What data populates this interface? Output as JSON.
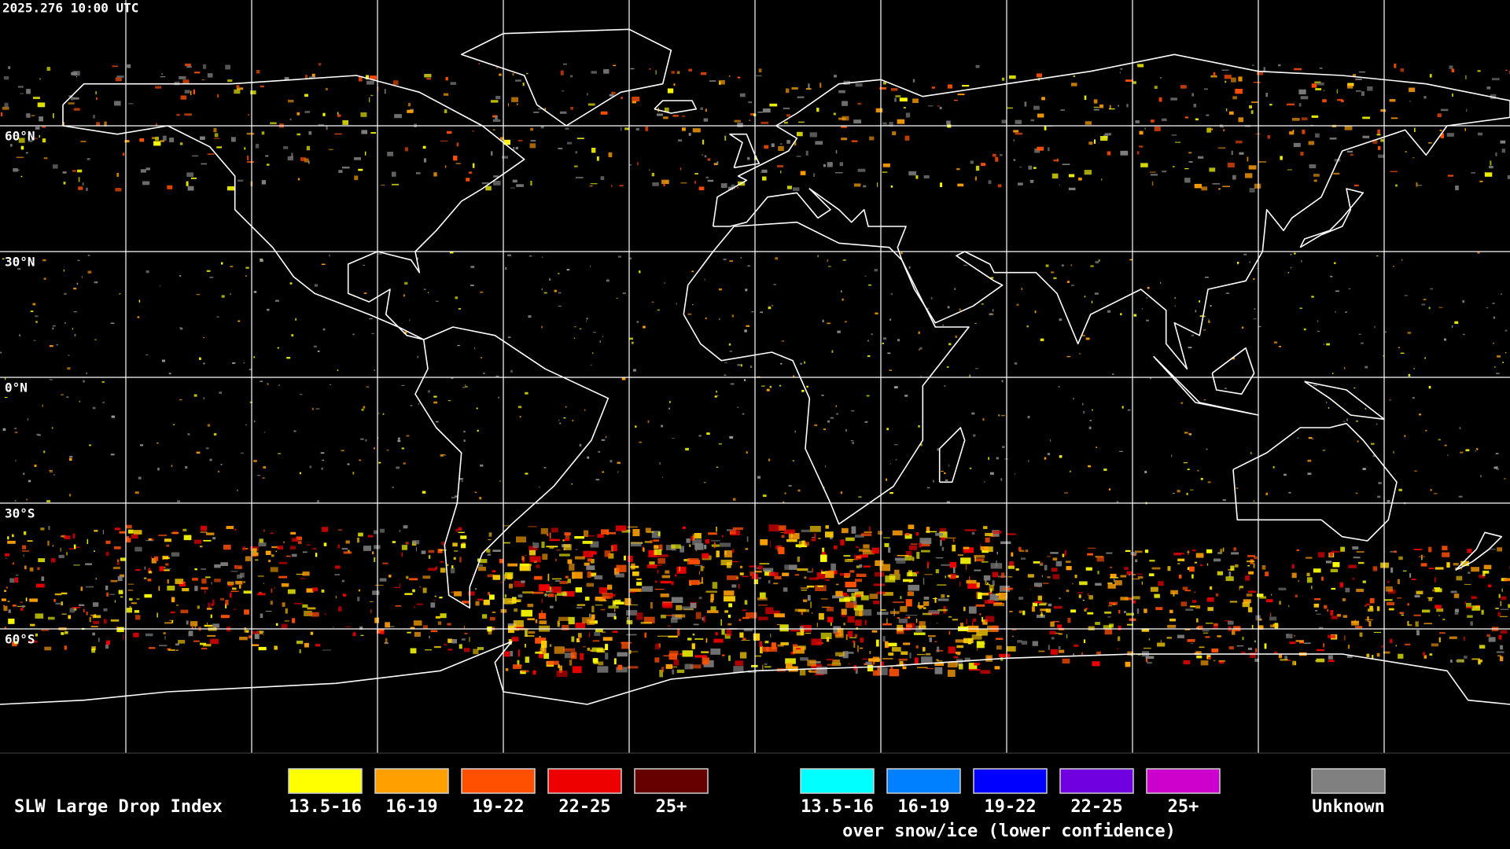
{
  "header": {
    "timestamp": "2025.276 10:00 UTC"
  },
  "map": {
    "latitude_labels": [
      "60°N",
      "30°N",
      "0°N",
      "30°S",
      "60°S"
    ]
  },
  "legend": {
    "title": "SLW Large Drop Index",
    "groups": [
      {
        "items": [
          {
            "label": "13.5-16",
            "color": "#ffff00"
          },
          {
            "label": "16-19",
            "color": "#ffa000"
          },
          {
            "label": "19-22",
            "color": "#ff5000"
          },
          {
            "label": "22-25",
            "color": "#ee0000"
          },
          {
            "label": "25+",
            "color": "#660000"
          }
        ]
      },
      {
        "items": [
          {
            "label": "13.5-16",
            "color": "#00ffff"
          },
          {
            "label": "16-19",
            "color": "#0080ff"
          },
          {
            "label": "19-22",
            "color": "#0000ff"
          },
          {
            "label": "22-25",
            "color": "#7000e0"
          },
          {
            "label": "25+",
            "color": "#cc00cc"
          }
        ],
        "caption": "over snow/ice (lower confidence)"
      },
      {
        "items": [
          {
            "label": "Unknown",
            "color": "#808080"
          }
        ]
      }
    ]
  }
}
